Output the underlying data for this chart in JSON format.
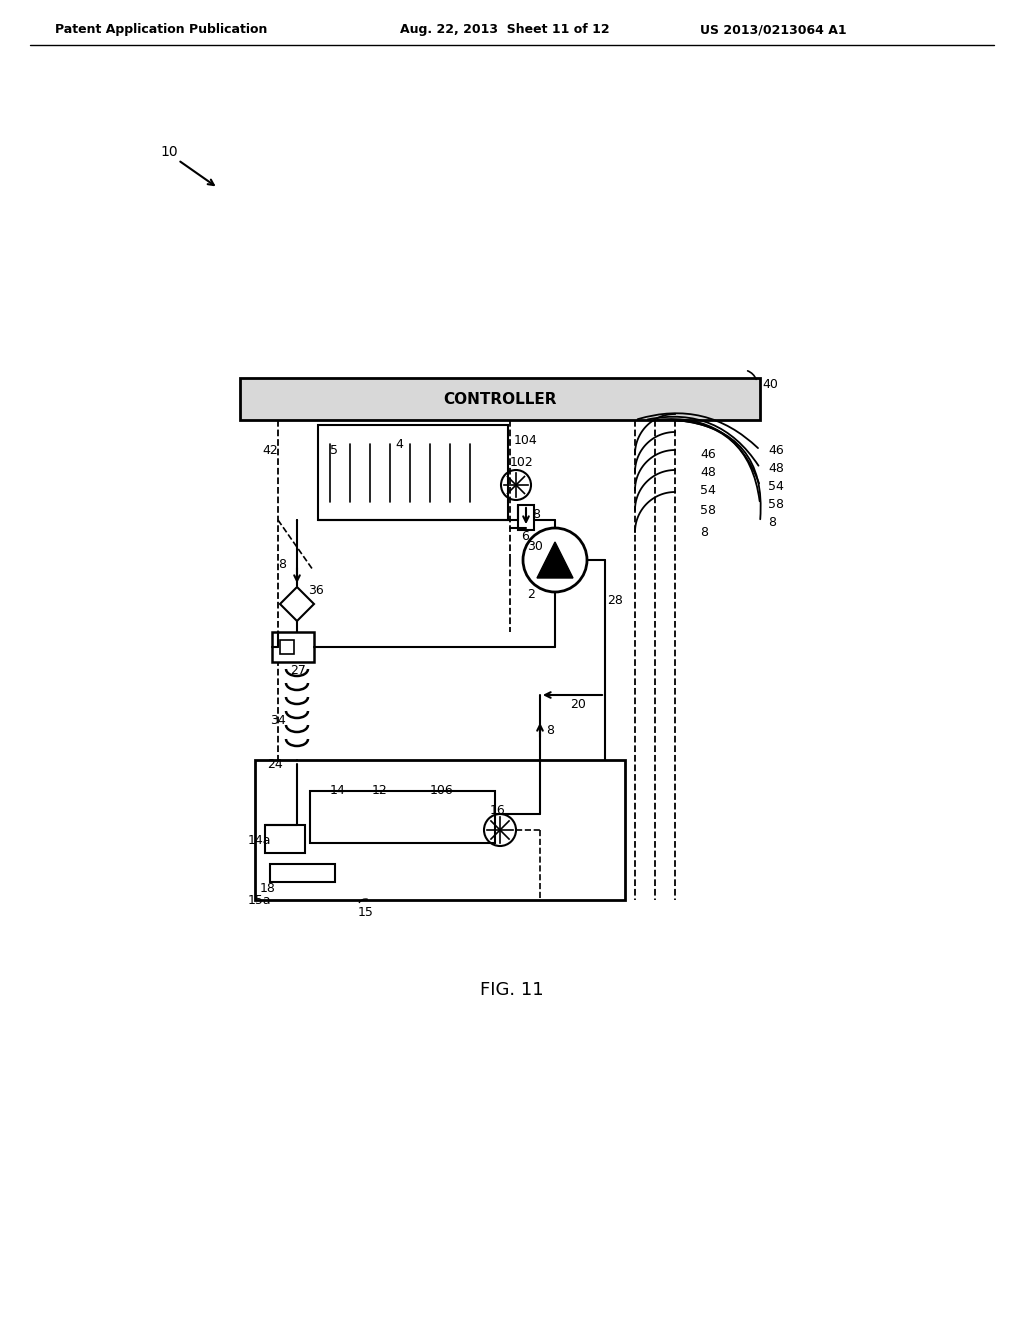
{
  "bg_color": "#ffffff",
  "header_left": "Patent Application Publication",
  "header_mid": "Aug. 22, 2013  Sheet 11 of 12",
  "header_right": "US 2013/0213064 A1",
  "fig_label": "FIG. 11"
}
